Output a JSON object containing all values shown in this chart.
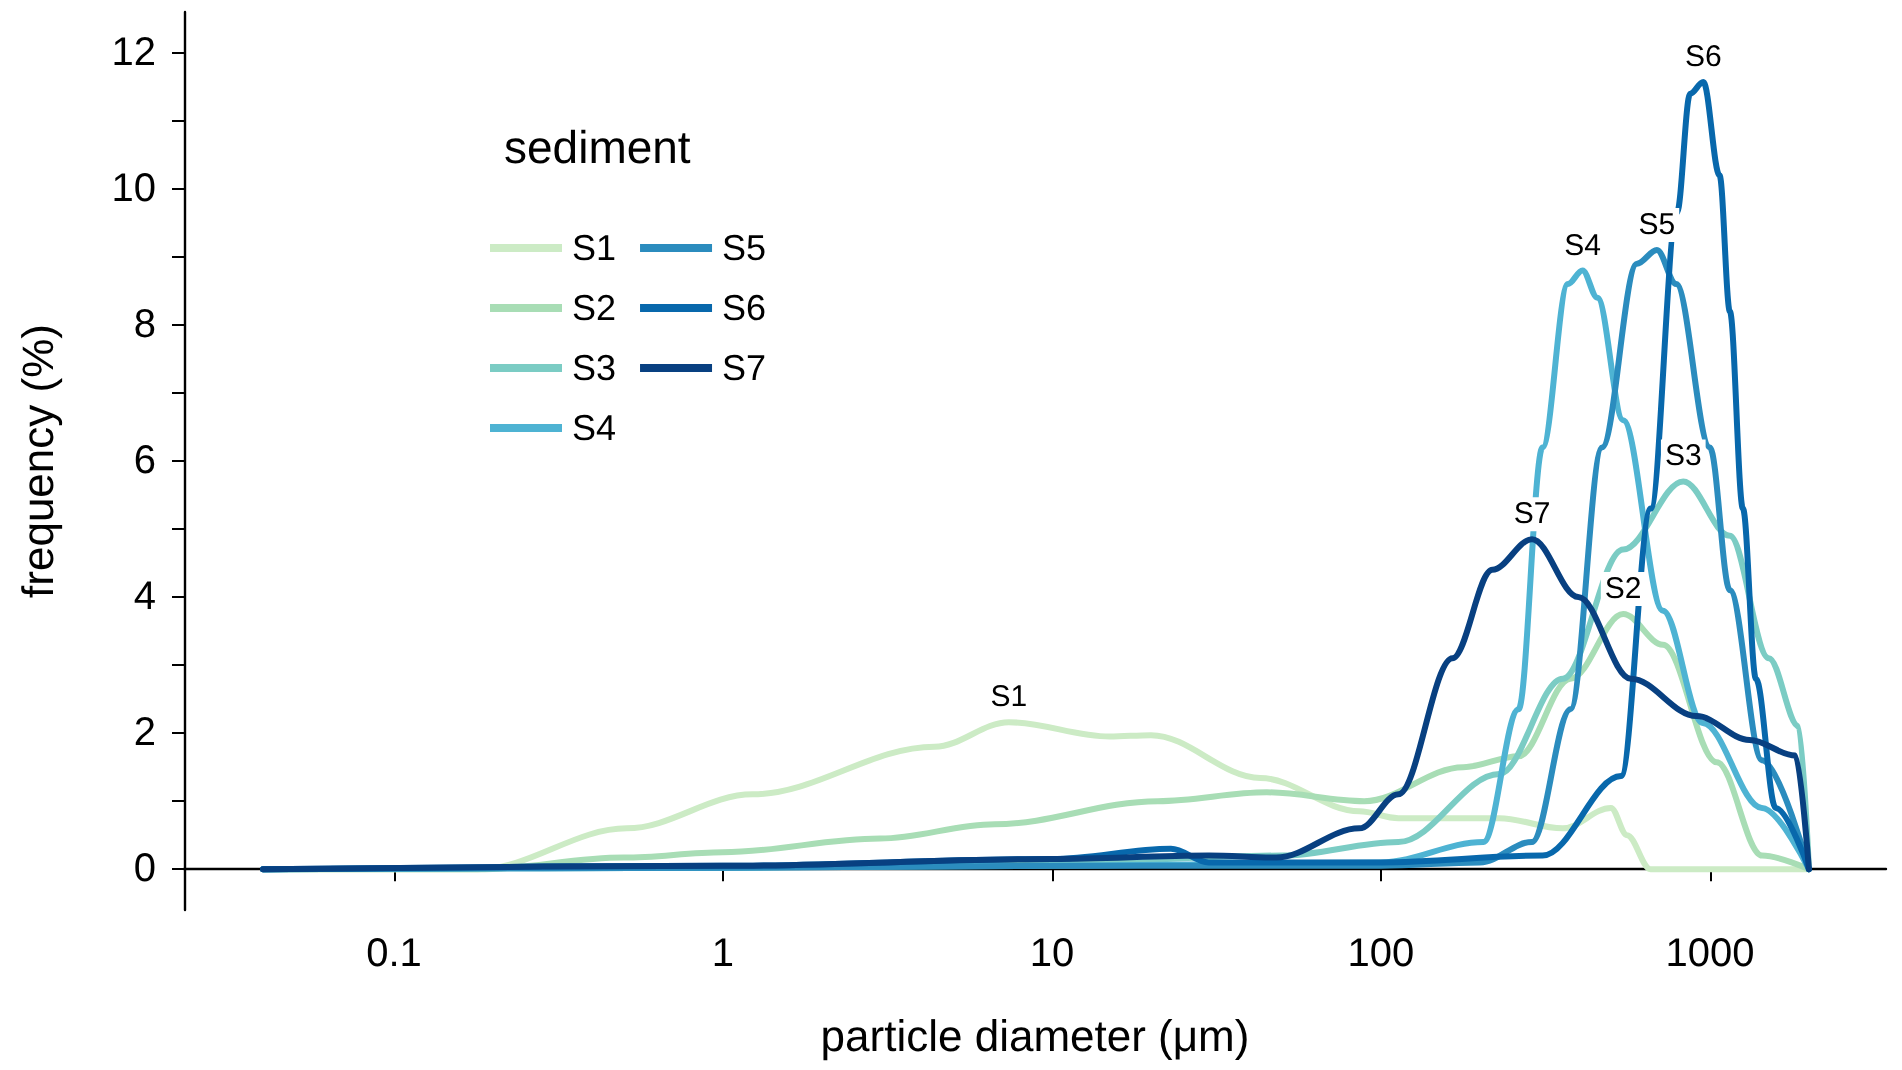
{
  "chart_data": {
    "type": "line",
    "xlabel": "particle diameter (μm)",
    "ylabel": "frequency (%)",
    "legend_title": "sediment",
    "log": "x",
    "legend": "top left",
    "grid": false,
    "marker": "none",
    "line_style": "solid",
    "xlim": [
      0.023,
      3430
    ],
    "xticks": [
      0.1,
      1,
      10,
      100,
      1000
    ],
    "ylim": [
      -0.6,
      12.6
    ],
    "yticks": [
      0,
      {
        "value": 1,
        "label": null
      },
      2,
      {
        "value": 3,
        "label": null
      },
      4,
      {
        "value": 5,
        "label": null
      },
      6,
      {
        "value": 7,
        "label": null
      },
      8,
      {
        "value": 9,
        "label": null
      },
      10,
      {
        "value": 11,
        "label": null
      },
      12
    ],
    "series": [
      {
        "name": "S1",
        "color": "#ccebc5",
        "x": [
          0.04,
          0.18,
          0.51,
          1.23,
          4.4,
          7.4,
          15,
          20,
          43,
          86,
          113,
          229,
          357,
          500,
          560,
          660,
          2000
        ],
        "values": [
          0,
          0,
          0.6,
          1.1,
          1.8,
          2.16,
          1.95,
          1.97,
          1.34,
          0.85,
          0.75,
          0.75,
          0.6,
          0.9,
          0.5,
          0,
          0
        ]
      },
      {
        "name": "S2",
        "color": "#a8ddb5",
        "x": [
          0.04,
          0.18,
          0.5,
          1,
          3,
          6.7,
          21,
          45,
          89,
          178,
          262,
          377,
          545,
          720,
          1050,
          1440,
          2000
        ],
        "values": [
          0,
          0,
          0.17,
          0.25,
          0.45,
          0.66,
          1.0,
          1.13,
          1.0,
          1.5,
          1.66,
          2.8,
          3.75,
          3.3,
          1.57,
          0.2,
          0
        ]
      },
      {
        "name": "S3",
        "color": "#7bccc4",
        "x": [
          0.04,
          1,
          10,
          50,
          113,
          229,
          357,
          545,
          830,
          1150,
          1510,
          1860,
          2000
        ],
        "values": [
          0,
          0.02,
          0.1,
          0.2,
          0.4,
          1.4,
          2.8,
          4.7,
          5.7,
          4.9,
          3.1,
          2.1,
          0
        ]
      },
      {
        "name": "S4",
        "color": "#4eb3d3",
        "x": [
          0.04,
          1,
          10,
          100,
          205,
          262,
          310,
          370,
          410,
          455,
          545,
          720,
          950,
          1440,
          2000
        ],
        "values": [
          0,
          0.02,
          0.05,
          0.1,
          0.4,
          2.35,
          6.2,
          8.6,
          8.8,
          8.4,
          6.6,
          3.8,
          2.15,
          0.9,
          0
        ]
      },
      {
        "name": "S5",
        "color": "#2b8cbe",
        "x": [
          0.04,
          1,
          10,
          100,
          200,
          288,
          377,
          470,
          600,
          690,
          790,
          1000,
          1150,
          1440,
          2000
        ],
        "values": [
          0,
          0.02,
          0.05,
          0.05,
          0.1,
          0.4,
          2.35,
          6.2,
          8.9,
          9.1,
          8.6,
          6.2,
          4.1,
          1.6,
          0
        ]
      },
      {
        "name": "S6",
        "color": "#0868ac",
        "x": [
          0.04,
          1,
          10,
          23,
          30,
          100,
          310,
          537,
          661,
          794,
          871,
          955,
          1070,
          1150,
          1260,
          1380,
          1585,
          2000
        ],
        "values": [
          0,
          0.05,
          0.15,
          0.3,
          0.1,
          0.1,
          0.2,
          1.37,
          5.3,
          9.65,
          11.4,
          11.57,
          10.2,
          8.2,
          5.3,
          2.8,
          0.9,
          0
        ]
      },
      {
        "name": "S7",
        "color": "#084081",
        "x": [
          0.04,
          1,
          10,
          30,
          48,
          86,
          113,
          165,
          218,
          288,
          398,
          575,
          910,
          1320,
          1820,
          2000
        ],
        "values": [
          0,
          0.05,
          0.15,
          0.2,
          0.17,
          0.6,
          1.1,
          3.1,
          4.4,
          4.85,
          4.0,
          2.8,
          2.25,
          1.9,
          1.67,
          0
        ]
      }
    ]
  }
}
